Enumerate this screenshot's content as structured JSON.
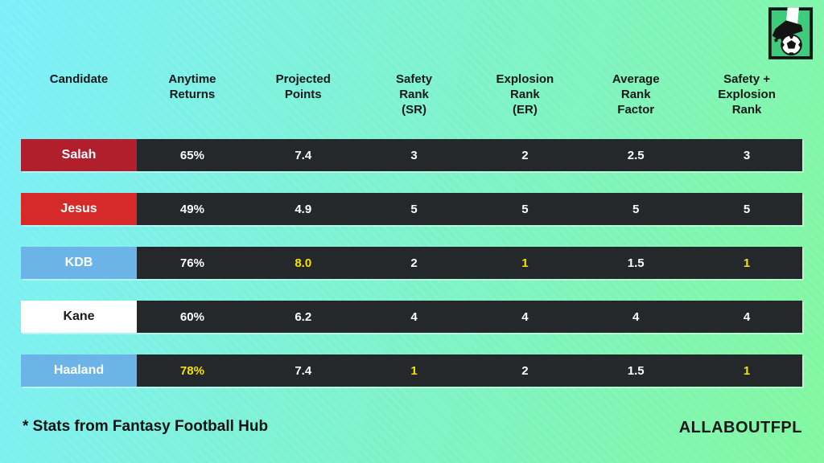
{
  "chart_data": {
    "type": "table",
    "columns": [
      {
        "lines": [
          "Candidate"
        ]
      },
      {
        "lines": [
          "Anytime",
          "Returns"
        ]
      },
      {
        "lines": [
          "Projected",
          "Points"
        ]
      },
      {
        "lines": [
          "Safety",
          "Rank",
          "(SR)"
        ]
      },
      {
        "lines": [
          "Explosion",
          "Rank",
          "(ER)"
        ]
      },
      {
        "lines": [
          "Average",
          "Rank",
          "Factor"
        ]
      },
      {
        "lines": [
          "Safety +",
          "Explosion",
          "Rank"
        ]
      }
    ],
    "rows": [
      {
        "name": "Salah",
        "label_bg": "#b01f2b",
        "label_color": "#ffffff",
        "cells": [
          {
            "v": "65%",
            "hl": false
          },
          {
            "v": "7.4",
            "hl": false
          },
          {
            "v": "3",
            "hl": false
          },
          {
            "v": "2",
            "hl": false
          },
          {
            "v": "2.5",
            "hl": false
          },
          {
            "v": "3",
            "hl": false
          }
        ]
      },
      {
        "name": "Jesus",
        "label_bg": "#d62a2a",
        "label_color": "#ffffff",
        "cells": [
          {
            "v": "49%",
            "hl": false
          },
          {
            "v": "4.9",
            "hl": false
          },
          {
            "v": "5",
            "hl": false
          },
          {
            "v": "5",
            "hl": false
          },
          {
            "v": "5",
            "hl": false
          },
          {
            "v": "5",
            "hl": false
          }
        ]
      },
      {
        "name": "KDB",
        "label_bg": "#6cb4e8",
        "label_color": "#ffffff",
        "cells": [
          {
            "v": "76%",
            "hl": false
          },
          {
            "v": "8.0",
            "hl": true
          },
          {
            "v": "2",
            "hl": false
          },
          {
            "v": "1",
            "hl": true
          },
          {
            "v": "1.5",
            "hl": false
          },
          {
            "v": "1",
            "hl": true
          }
        ]
      },
      {
        "name": "Kane",
        "label_bg": "#ffffff",
        "label_color": "#1a1a1a",
        "cells": [
          {
            "v": "60%",
            "hl": false
          },
          {
            "v": "6.2",
            "hl": false
          },
          {
            "v": "4",
            "hl": false
          },
          {
            "v": "4",
            "hl": false
          },
          {
            "v": "4",
            "hl": false
          },
          {
            "v": "4",
            "hl": false
          }
        ]
      },
      {
        "name": "Haaland",
        "label_bg": "#6cb4e8",
        "label_color": "#ffffff",
        "cells": [
          {
            "v": "78%",
            "hl": true
          },
          {
            "v": "7.4",
            "hl": false
          },
          {
            "v": "1",
            "hl": true
          },
          {
            "v": "2",
            "hl": false
          },
          {
            "v": "1.5",
            "hl": false
          },
          {
            "v": "1",
            "hl": true
          }
        ]
      }
    ]
  },
  "colors": {
    "highlight": "#f5e400",
    "cell_bg": "#25282a",
    "bg_start": "#7beffb",
    "bg_end": "#80f79e"
  },
  "footer": {
    "note": "*  Stats from Fantasy Football Hub",
    "brand": "ALLABOUTFPL"
  },
  "logo": {
    "name": "boot-kicking-ball-logo"
  }
}
